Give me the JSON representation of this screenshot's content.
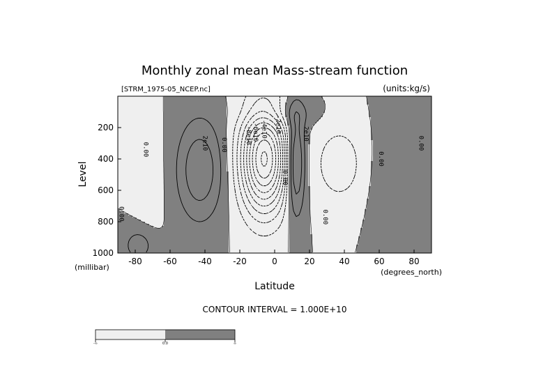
{
  "chart_data": {
    "type": "contour",
    "title": "Monthly zonal mean Mass-stream function",
    "file_label": "[STRM_1975-05_NCEP.nc]",
    "units_label": "(units:kg/s)",
    "xlabel": "Latitude",
    "x_units": "(degrees_north)",
    "ylabel": "Level",
    "y_units": "(millibar)",
    "xlim": [
      -90,
      90
    ],
    "ylim": [
      1000,
      0
    ],
    "x_ticks": [
      -80,
      -60,
      -40,
      -20,
      0,
      20,
      40,
      60,
      80
    ],
    "y_ticks": [
      200,
      400,
      600,
      800,
      1000
    ],
    "contour_interval_text": "CONTOUR INTERVAL = 1.000E+10",
    "contour_interval": 10000000000.0,
    "shading": {
      "positive_color": "#808080",
      "negative_color": "#efefef",
      "threshold": 0.0
    },
    "contour_labels": [
      {
        "text": "0.00",
        "lat": -74,
        "level": 340
      },
      {
        "text": "2e10",
        "lat": -40,
        "level": 300
      },
      {
        "text": "0.00",
        "lat": -29,
        "level": 310
      },
      {
        "text": "-8e10",
        "lat": -15,
        "level": 250
      },
      {
        "text": "-6e10",
        "lat": -11,
        "level": 230
      },
      {
        "text": "-4e10",
        "lat": -6,
        "level": 210
      },
      {
        "text": "-2e10",
        "lat": 2,
        "level": 180
      },
      {
        "text": "0.00",
        "lat": 6,
        "level": 520
      },
      {
        "text": "2e10",
        "lat": 18,
        "level": 240
      },
      {
        "text": "0.00",
        "lat": 29,
        "level": 770
      },
      {
        "text": "0.00",
        "lat": 61,
        "level": 400
      },
      {
        "text": "0.00",
        "lat": 84,
        "level": 300
      },
      {
        "text": "0.00",
        "lat": -88,
        "level": 750
      }
    ],
    "colorbar": {
      "tick_labels": [
        "-∞",
        "0.0",
        "∞"
      ]
    }
  }
}
